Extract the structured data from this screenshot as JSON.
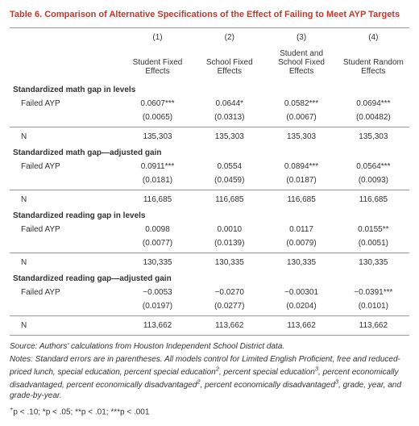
{
  "title": "Table 6. Comparison of Alternative Specifications of the Effect of Failing to Meet AYP Targets",
  "columns": [
    {
      "num": "(1)",
      "label": "Student Fixed Effects"
    },
    {
      "num": "(2)",
      "label": "School Fixed Effects"
    },
    {
      "num": "(3)",
      "label": "Student and School Fixed Effects"
    },
    {
      "num": "(4)",
      "label": "Student Random Effects"
    }
  ],
  "sections": [
    {
      "title": "Standardized math gap in levels",
      "failed_label": "Failed AYP",
      "est": [
        "0.0607***",
        "0.0644*",
        "0.0582***",
        "0.0694***"
      ],
      "se": [
        "(0.0065)",
        "(0.0313)",
        "(0.0067)",
        "(0.00482)"
      ],
      "n_label": "N",
      "n": [
        "135,303",
        "135,303",
        "135,303",
        "135,303"
      ]
    },
    {
      "title": "Standardized math gap—adjusted gain",
      "failed_label": "Failed AYP",
      "est": [
        "0.0911***",
        "0.0554",
        "0.0894***",
        "0.0564***"
      ],
      "se": [
        "(0.0181)",
        "(0.0459)",
        "(0.0187)",
        "(0.0093)"
      ],
      "n_label": "N",
      "n": [
        "116,685",
        "116,685",
        "116,685",
        "116,685"
      ]
    },
    {
      "title": "Standardized reading gap in levels",
      "failed_label": "Failed AYP",
      "est": [
        "0.0098",
        "0.0010",
        "0.0117",
        "0.0155**"
      ],
      "se": [
        "(0.0077)",
        "(0.0139)",
        "(0.0079)",
        "(0.0051)"
      ],
      "n_label": "N",
      "n": [
        "130,335",
        "130,335",
        "130,335",
        "130,335"
      ]
    },
    {
      "title": "Standardized reading gap—adjusted gain",
      "failed_label": "Failed AYP",
      "est": [
        "−0.0053",
        "−0.0270",
        "−0.00301",
        "−0.0391***"
      ],
      "se": [
        "(0.0197)",
        "(0.0277)",
        "(0.0204)",
        "(0.0101)"
      ],
      "n_label": "N",
      "n": [
        "113,662",
        "113,662",
        "113,662",
        "113,662"
      ]
    }
  ],
  "source_prefix": "Source:",
  "source_text": " Authors' calculations from Houston Independent School District data.",
  "notes_prefix": "Notes:",
  "notes_html": " Standard errors are in parentheses. All models control for Limited English Proficient, free and reduced-priced lunch, special education, percent special education<sup>2</sup>, percent special education<sup>3</sup>, percent economically disadvantaged, percent economically disadvantaged<sup>2</sup>, percent economically disadvantaged<sup>3</sup>, grade, year, and grade-by-year.",
  "sig_text": "+p < .10; *p < .05; **p < .01; ***p < .001"
}
